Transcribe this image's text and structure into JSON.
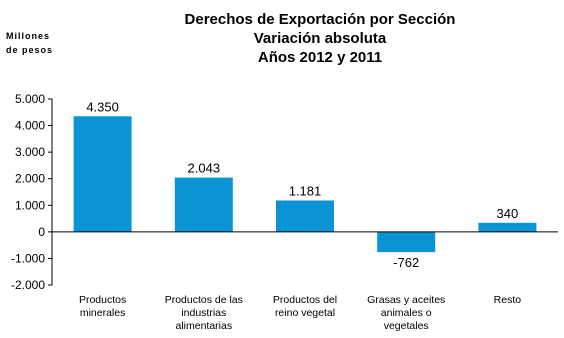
{
  "chart_data": {
    "type": "bar",
    "title": [
      "Derechos de Exportación por Sección",
      "Variación absoluta",
      "Años 2012 y 2011"
    ],
    "ylabel": [
      "Millones",
      "de pesos"
    ],
    "categories": [
      [
        "Productos",
        "minerales"
      ],
      [
        "Productos de las",
        "industrias",
        "alimentarias"
      ],
      [
        "Productos del",
        "reino vegetal"
      ],
      [
        "Grasas y aceites",
        "animales o",
        "vegetales"
      ],
      [
        "Resto"
      ]
    ],
    "values": [
      4350,
      2043,
      1181,
      -762,
      340
    ],
    "value_labels": [
      "4.350",
      "2.043",
      "1.181",
      "-762",
      "340"
    ],
    "yticks": [
      5000,
      4000,
      3000,
      2000,
      1000,
      0,
      -1000,
      -2000
    ],
    "ytick_labels": [
      "5.000",
      "4.000",
      "3.000",
      "2.000",
      "1.000",
      "0",
      "-1.000",
      "-2.000"
    ],
    "ylim": [
      -2000,
      5000
    ],
    "bar_color": "#0a94d6",
    "grid": false,
    "legend": "none"
  }
}
